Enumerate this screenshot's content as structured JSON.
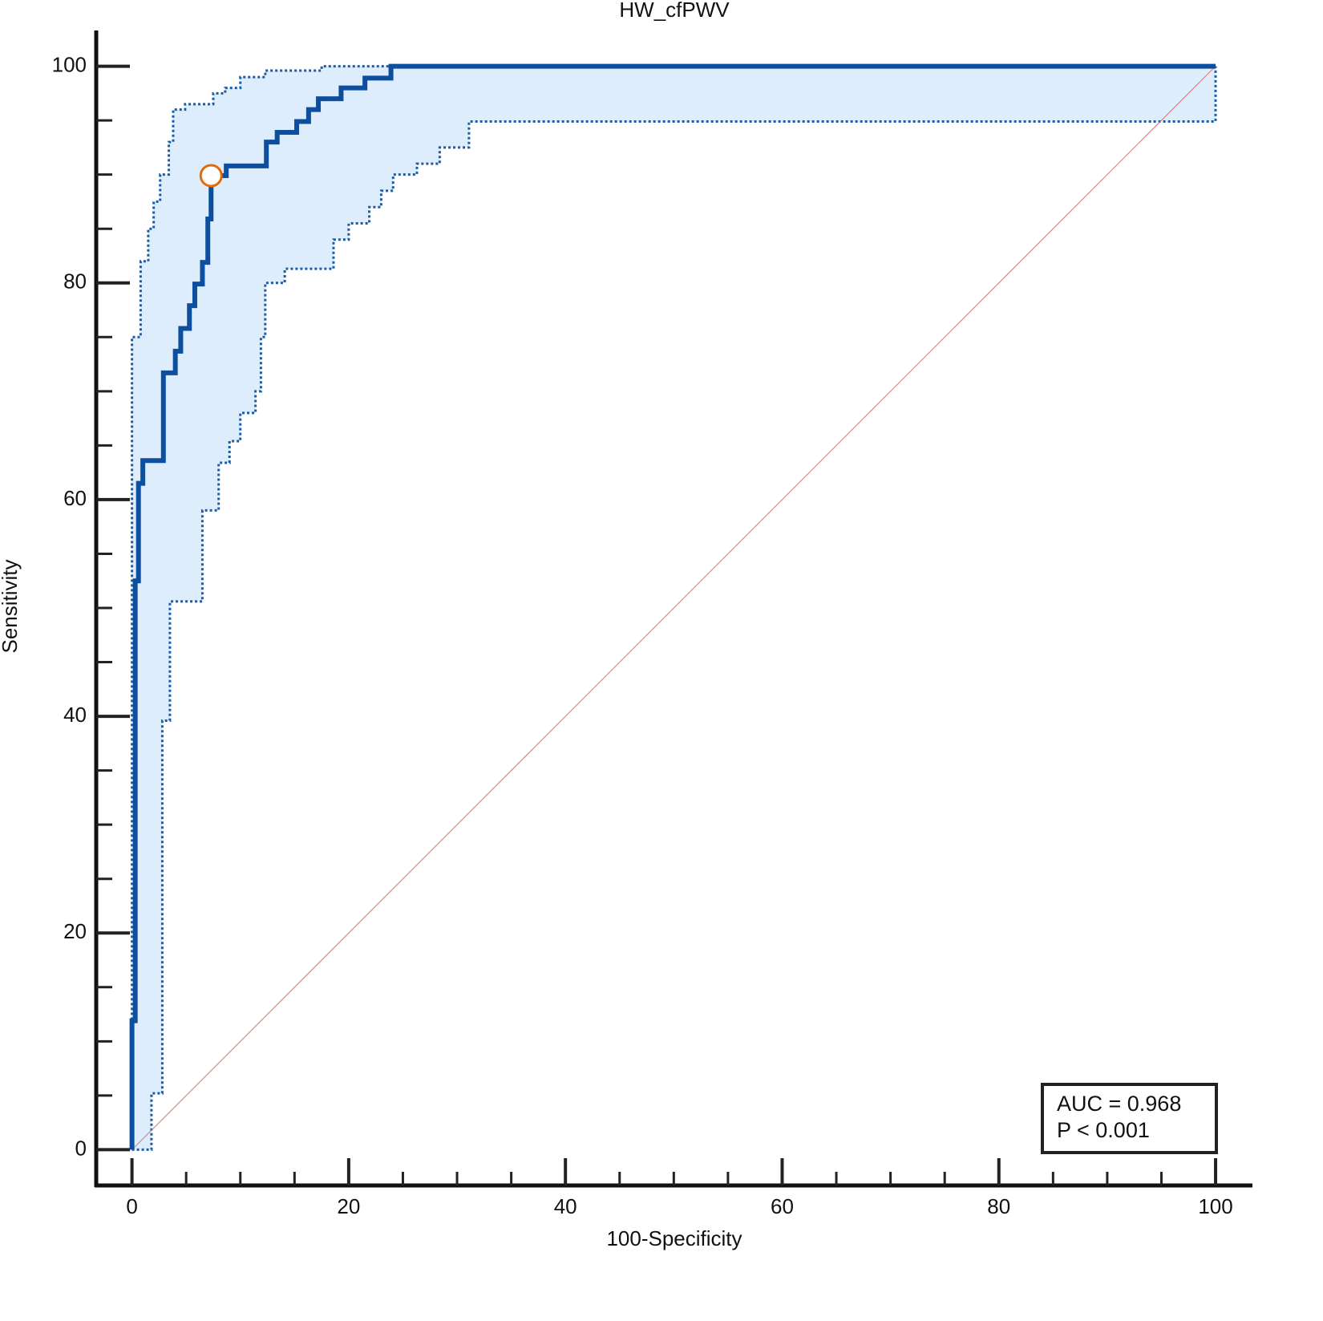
{
  "chart_data": {
    "type": "line",
    "title": "HW_cfPWV",
    "xlabel": "100-Specificity",
    "ylabel": "Sensitivity",
    "xlim": [
      -3.3,
      103.4
    ],
    "ylim": [
      -3.3,
      103.3
    ],
    "xticks": [
      0,
      20,
      40,
      60,
      80,
      100
    ],
    "yticks": [
      0,
      20,
      40,
      60,
      80,
      100
    ],
    "xminorticks": [
      5,
      10,
      15,
      25,
      30,
      35,
      45,
      50,
      55,
      65,
      70,
      75,
      85,
      90,
      95
    ],
    "yminorticks": [
      5,
      10,
      15,
      25,
      30,
      35,
      45,
      50,
      55,
      65,
      70,
      75,
      85,
      90,
      95
    ],
    "band_color": "#ddedfb",
    "series": [
      {
        "ci": "curve",
        "color": "#0d4f9e",
        "dashed": false,
        "width": 6,
        "x": [
          0,
          0,
          0.3,
          0.3,
          0.6,
          0.6,
          1.0,
          1.0,
          2.9,
          2.9,
          4.0,
          4.0,
          4.5,
          4.5,
          5.3,
          5.3,
          5.8,
          5.8,
          6.5,
          6.5,
          7.0,
          7.0,
          7.3,
          7.3,
          8.7,
          8.7,
          12.4,
          12.4,
          13.4,
          13.4,
          15.2,
          15.2,
          16.3,
          16.3,
          17.2,
          17.2,
          19.3,
          19.3,
          21.5,
          21.5,
          23.9,
          23.9,
          100
        ],
        "y": [
          0,
          11.9,
          11.9,
          52.5,
          52.5,
          61.5,
          61.5,
          63.6,
          63.6,
          71.7,
          71.7,
          73.7,
          73.7,
          75.8,
          75.8,
          77.9,
          77.9,
          79.9,
          79.9,
          81.9,
          81.9,
          85.9,
          85.9,
          89.9,
          89.9,
          90.8,
          90.8,
          93.0,
          93.0,
          93.9,
          93.9,
          94.9,
          94.9,
          96.0,
          96.0,
          97.0,
          97.0,
          98.0,
          98.0,
          98.9,
          98.9,
          100,
          100
        ]
      },
      {
        "ci": "upper",
        "color": "#1a5ca8",
        "dashed": true,
        "width": 3,
        "x": [
          0,
          0,
          0.8,
          0.8,
          1.5,
          1.5,
          2.0,
          2.0,
          2.6,
          2.6,
          3.4,
          3.4,
          3.8,
          3.8,
          4.9,
          4.9,
          7.5,
          7.5,
          8.6,
          8.6,
          10.0,
          10.0,
          12.3,
          12.3,
          17.5,
          17.5,
          100
        ],
        "y": [
          0,
          75,
          75,
          82,
          82,
          85,
          85,
          87.5,
          87.5,
          90,
          90,
          93,
          93,
          96,
          96,
          96.5,
          96.5,
          97.5,
          97.5,
          98,
          98,
          99,
          99,
          99.6,
          99.6,
          100,
          100
        ]
      },
      {
        "ci": "lower",
        "color": "#1a5ca8",
        "dashed": true,
        "width": 3,
        "x": [
          0,
          1.8,
          1.8,
          2.8,
          2.8,
          3.5,
          3.5,
          6.5,
          6.5,
          8.0,
          8.0,
          9.0,
          9.0,
          10.0,
          10.0,
          11.4,
          11.4,
          11.9,
          11.9,
          12.3,
          12.3,
          14.1,
          14.1,
          18.6,
          18.6,
          20.0,
          20.0,
          21.9,
          21.9,
          23.0,
          23.0,
          24.1,
          24.1,
          26.3,
          26.3,
          28.4,
          28.4,
          31.1,
          31.1,
          100,
          100
        ],
        "y": [
          0,
          0,
          5.2,
          5.2,
          39.6,
          39.6,
          50.6,
          50.6,
          59,
          59,
          63.4,
          63.4,
          65.4,
          65.4,
          68,
          68,
          70,
          70,
          75,
          75,
          80,
          80,
          81.3,
          81.3,
          84,
          84,
          85.5,
          85.5,
          87,
          87,
          88.5,
          88.5,
          90,
          90,
          91,
          91,
          92.5,
          92.5,
          94.9,
          94.9,
          100
        ]
      },
      {
        "ci": "diagonal",
        "color": "#e07070",
        "dashed": false,
        "width": 1,
        "x": [
          0,
          100
        ],
        "y": [
          0,
          100
        ]
      }
    ],
    "point": {
      "x": 7.3,
      "y": 89.9,
      "color": "#e36c0a"
    },
    "annotation": [
      "AUC = 0.968",
      "P < 0.001"
    ]
  }
}
